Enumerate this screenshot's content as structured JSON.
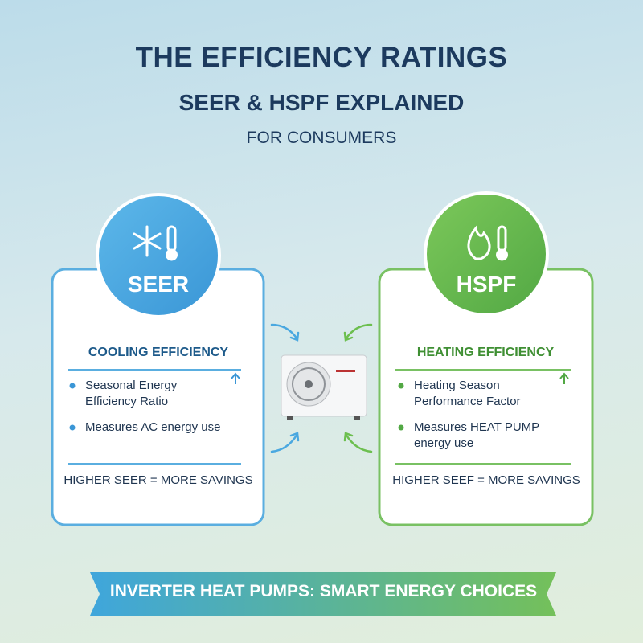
{
  "header": {
    "title": "THE EFFICIENCY RATINGS",
    "subtitle": "SEER & HSPF EXPLAINED",
    "tagline": "FOR CONSUMERS"
  },
  "cards": [
    {
      "badge": "SEER",
      "heading": "COOLING EFFICIENCY",
      "bullets": [
        "Seasonal Energy Efficiency Ratio",
        "Measures AC energy use"
      ],
      "footer": "HIGHER SEER = MORE SAVINGS"
    },
    {
      "badge": "HSPF",
      "heading": "HEATING EFFICIENCY",
      "bullets": [
        "Heating Season Performance Factor",
        "Measures HEAT PUMP energy use"
      ],
      "footer": "HIGHER SEEF = MORE SAVINGS"
    }
  ],
  "banner": "INVERTER HEAT PUMPS: SMART ENERGY CHOICES"
}
